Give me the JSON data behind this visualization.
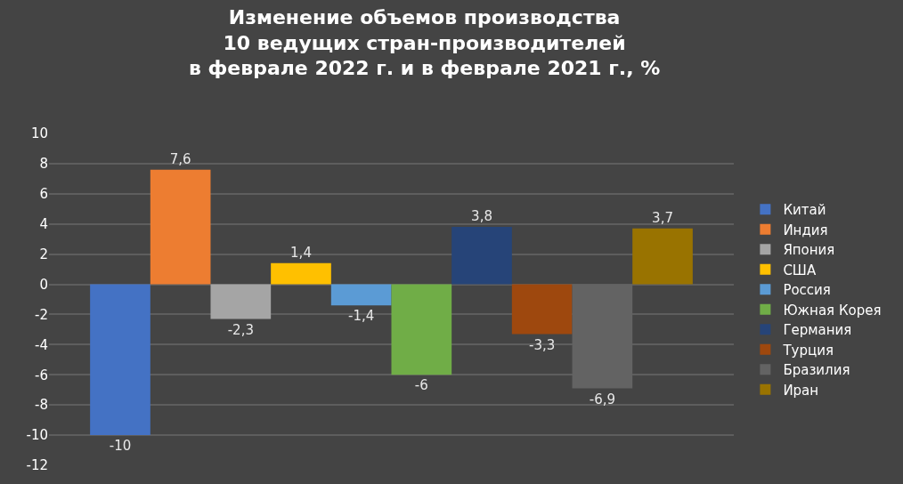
{
  "chart_data": {
    "type": "bar",
    "title": "Изменение объемов производства\n10 ведущих стран-производителей\nв феврале 2022 г. и в феврале 2021 г., %",
    "categories": [
      null
    ],
    "series": [
      {
        "name": "Китай",
        "color": "#4472c4",
        "values": [
          -10
        ],
        "value_labels": [
          "-10"
        ]
      },
      {
        "name": "Индия",
        "color": "#ed7d31",
        "values": [
          7.6
        ],
        "value_labels": [
          "7,6"
        ]
      },
      {
        "name": "Япония",
        "color": "#a5a5a5",
        "values": [
          -2.3
        ],
        "value_labels": [
          "-2,3"
        ]
      },
      {
        "name": "США",
        "color": "#ffc000",
        "values": [
          1.4
        ],
        "value_labels": [
          "1,4"
        ]
      },
      {
        "name": "Россия",
        "color": "#5b9bd5",
        "values": [
          -1.4
        ],
        "value_labels": [
          "-1,4"
        ]
      },
      {
        "name": "Южная Корея",
        "color": "#70ad47",
        "values": [
          -6
        ],
        "value_labels": [
          "-6"
        ]
      },
      {
        "name": "Германия",
        "color": "#264478",
        "values": [
          3.8
        ],
        "value_labels": [
          "3,8"
        ]
      },
      {
        "name": "Турция",
        "color": "#9e480e",
        "values": [
          -3.3
        ],
        "value_labels": [
          "-3,3"
        ]
      },
      {
        "name": "Бразилия",
        "color": "#636363",
        "values": [
          -6.9
        ],
        "value_labels": [
          "-6,9"
        ]
      },
      {
        "name": "Иран",
        "color": "#997300",
        "values": [
          3.7
        ],
        "value_labels": [
          "3,7"
        ]
      }
    ],
    "ylim": [
      -12,
      10
    ],
    "yticks": [
      -12,
      -10,
      -8,
      -6,
      -4,
      -2,
      0,
      2,
      4,
      6,
      8,
      10
    ],
    "grid": "y",
    "legend": "right"
  }
}
